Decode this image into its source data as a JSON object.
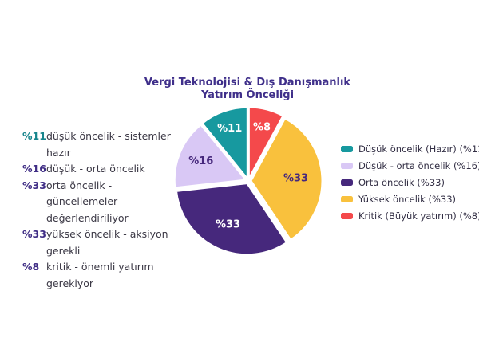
{
  "title": {
    "text": "Vergi Teknolojisi & Dış Danışmanlık\nYatırım Önceliği",
    "color": "#3F2F8A"
  },
  "chart_data": {
    "type": "pie",
    "title": "Vergi Teknolojisi & Dış Danışmanlık Yatırım Önceliği",
    "start_angle_deg": 0,
    "direction": "clockwise",
    "slices": [
      {
        "name": "Kritik (Büyük yatırım)",
        "pct": 8,
        "label": "%8",
        "color": "#F4494B",
        "label_color": "#FFFFFF",
        "label_r": 0.74
      },
      {
        "name": "Yüksek öncelik",
        "pct": 33,
        "label": "%33",
        "color": "#F9C13D",
        "label_color": "#46287C",
        "label_r": 0.63
      },
      {
        "name": "Orta öncelik",
        "pct": 33,
        "label": "%33",
        "color": "#46287C",
        "label_color": "#FFFFFF",
        "label_r": 0.64
      },
      {
        "name": "Düşük - orta öncelik",
        "pct": 16,
        "label": "%16",
        "color": "#D9C8F5",
        "label_color": "#46287C",
        "label_r": 0.68
      },
      {
        "name": "Düşük öncelik (Hazır)",
        "pct": 11,
        "label": "%11",
        "color": "#17999F",
        "label_color": "#FFFFFF",
        "label_r": 0.74
      }
    ],
    "legend_position": "right"
  },
  "annotations": {
    "rows": [
      {
        "pct": "%11",
        "pct_color": "#17858C",
        "text": "düşük öncelik - sistemler hazır"
      },
      {
        "pct": "%16",
        "pct_color": "#3F2D85",
        "text": "düşük - orta öncelik"
      },
      {
        "pct": "%33",
        "pct_color": "#3F2D85",
        "text": "orta öncelik - güncellemeler\ndeğerlendiriliyor"
      },
      {
        "pct": "%33",
        "pct_color": "#3F2D85",
        "text": "yüksek öncelik - aksiyon gerekli"
      },
      {
        "pct": "%8",
        "pct_color": "#3F2D85",
        "text": "kritik - önemli yatırım gerekiyor"
      }
    ]
  },
  "legend": {
    "items": [
      {
        "label": "Düşük öncelik (Hazır) (%11)",
        "color": "#17999F"
      },
      {
        "label": "Düşük - orta öncelik (%16)",
        "color": "#D9C8F5"
      },
      {
        "label": "Orta öncelik (%33)",
        "color": "#46287C"
      },
      {
        "label": "Yüksek öncelik (%33)",
        "color": "#F9C13D"
      },
      {
        "label": "Kritik (Büyük yatırım) (%8)",
        "color": "#F4494B"
      }
    ]
  }
}
